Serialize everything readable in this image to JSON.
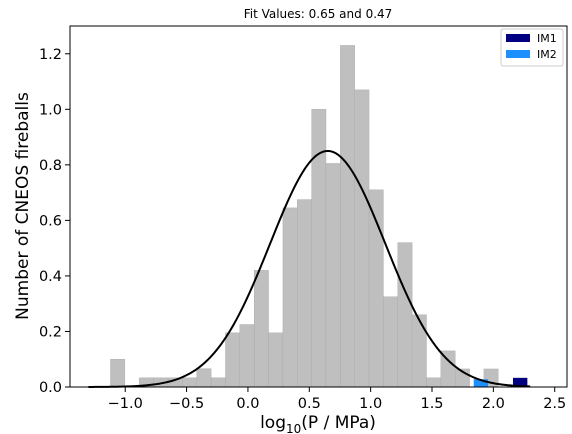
{
  "chart_data": {
    "type": "bar",
    "title": "Fit Values: 0.65 and 0.47",
    "xlabel_base": "log",
    "xlabel_sub": "10",
    "xlabel_rest": "(P / MPa)",
    "ylabel": "Number of CNEOS fireballs",
    "xlim": [
      -1.45,
      2.6
    ],
    "ylim": [
      0,
      1.3
    ],
    "xticks": [
      -1.0,
      -0.5,
      0.0,
      0.5,
      1.0,
      1.5,
      2.0,
      2.5
    ],
    "xtick_labels": [
      "−1.0",
      "−0.5",
      "0.0",
      "0.5",
      "1.0",
      "1.5",
      "2.0",
      "2.5"
    ],
    "yticks": [
      0.0,
      0.2,
      0.4,
      0.6,
      0.8,
      1.0,
      1.2
    ],
    "ytick_labels": [
      "0.0",
      "0.2",
      "0.4",
      "0.6",
      "0.8",
      "1.0",
      "1.2"
    ],
    "histogram": {
      "color": "#bfbfbf",
      "bin_width": 0.117,
      "bins": [
        {
          "x0": -1.12,
          "value": 0.1
        },
        {
          "x0": -0.885,
          "value": 0.033
        },
        {
          "x0": -0.768,
          "value": 0.033
        },
        {
          "x0": -0.651,
          "value": 0.033
        },
        {
          "x0": -0.534,
          "value": 0.033
        },
        {
          "x0": -0.417,
          "value": 0.066
        },
        {
          "x0": -0.3,
          "value": 0.033
        },
        {
          "x0": -0.183,
          "value": 0.195
        },
        {
          "x0": -0.066,
          "value": 0.225
        },
        {
          "x0": 0.051,
          "value": 0.42
        },
        {
          "x0": 0.168,
          "value": 0.195
        },
        {
          "x0": 0.285,
          "value": 0.645
        },
        {
          "x0": 0.402,
          "value": 0.675
        },
        {
          "x0": 0.519,
          "value": 1.0
        },
        {
          "x0": 0.636,
          "value": 0.805
        },
        {
          "x0": 0.753,
          "value": 1.23
        },
        {
          "x0": 0.87,
          "value": 1.07
        },
        {
          "x0": 0.987,
          "value": 0.71
        },
        {
          "x0": 1.104,
          "value": 0.325
        },
        {
          "x0": 1.221,
          "value": 0.52
        },
        {
          "x0": 1.338,
          "value": 0.26
        },
        {
          "x0": 1.455,
          "value": 0.033
        },
        {
          "x0": 1.572,
          "value": 0.13
        },
        {
          "x0": 1.689,
          "value": 0.065
        },
        {
          "x0": 1.923,
          "value": 0.065
        }
      ]
    },
    "fit_curve": {
      "color": "#000000",
      "amplitude": 0.85,
      "mean": 0.65,
      "sigma": 0.47,
      "x_range": [
        -1.3,
        2.3
      ]
    },
    "series": [
      {
        "name": "IM1",
        "color": "#000080",
        "bins": [
          {
            "x0": 2.16,
            "value": 0.033
          }
        ]
      },
      {
        "name": "IM2",
        "color": "#1e8fff",
        "bins": [
          {
            "x0": 1.84,
            "value": 0.028
          }
        ]
      }
    ],
    "legend": {
      "position": "top-right"
    }
  }
}
